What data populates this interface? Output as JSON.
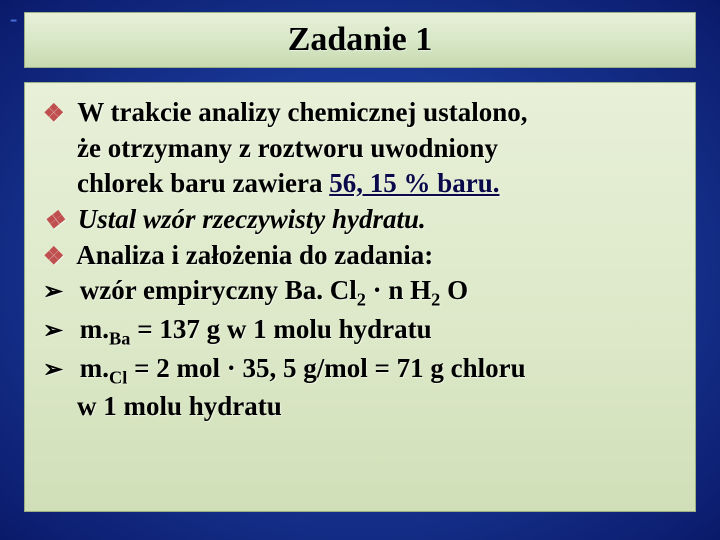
{
  "decor": {
    "dashes": "- - - - -"
  },
  "title": "Zadanie 1",
  "content": {
    "p1_l1": "W trakcie analizy chemicznej ustalono,",
    "p1_l2": "że otrzymany z roztworu uwodniony",
    "p1_l3_a": "chlorek baru zawiera ",
    "p1_l3_b": "56, 15 % baru.",
    "p2": "Ustal wzór rzeczywisty hydratu.",
    "p3": "Analiza i założenia do zadania:",
    "p4_a": " wzór empiryczny Ba. Cl",
    "p4_sub1": "2",
    "p4_b": " · n H",
    "p4_sub2": "2",
    "p4_c": " O",
    "p5_a": "m.",
    "p5_sub": "Ba",
    "p5_b": " = 137 g w 1 molu hydratu",
    "p6_a": "m.",
    "p6_sub": "Cl",
    "p6_b": " = 2 mol · 35, 5 g/mol = 71 g chloru",
    "p6_l2": "w 1 molu hydratu"
  },
  "colors": {
    "bg_outer": "#0a1a6a",
    "bg_inner": "#3a5fcc",
    "box_top": "#e8f0d8",
    "box_bottom": "#d0dfb8",
    "diamond": "#c05050",
    "text": "#000000"
  }
}
